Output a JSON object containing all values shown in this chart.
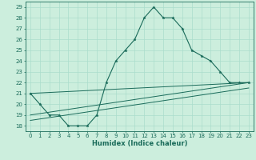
{
  "xlabel": "Humidex (Indice chaleur)",
  "bg_color": "#cceedd",
  "grid_color": "#aaddcc",
  "line_color": "#1a6b5a",
  "xlim": [
    -0.5,
    23.5
  ],
  "ylim": [
    17.5,
    29.5
  ],
  "xticks": [
    0,
    1,
    2,
    3,
    4,
    5,
    6,
    7,
    8,
    9,
    10,
    11,
    12,
    13,
    14,
    15,
    16,
    17,
    18,
    19,
    20,
    21,
    22,
    23
  ],
  "yticks": [
    18,
    19,
    20,
    21,
    22,
    23,
    24,
    25,
    26,
    27,
    28,
    29
  ],
  "main_x": [
    0,
    1,
    2,
    3,
    4,
    5,
    6,
    7,
    8,
    9,
    10,
    11,
    12,
    13,
    14,
    15,
    16,
    17,
    18,
    19,
    20,
    21,
    22,
    23
  ],
  "main_y": [
    21,
    20,
    19,
    19,
    18,
    18,
    18,
    19,
    22,
    24,
    25,
    26,
    28,
    29,
    28,
    28,
    27,
    25,
    24.5,
    24,
    23,
    22,
    22,
    22
  ],
  "line2_x": [
    0,
    23
  ],
  "line2_y": [
    21,
    22
  ],
  "line3_x": [
    0,
    23
  ],
  "line3_y": [
    19,
    22
  ],
  "line4_x": [
    0,
    23
  ],
  "line4_y": [
    18.5,
    21.5
  ],
  "xlabel_fontsize": 6,
  "tick_fontsize": 5,
  "label_color": "#1a6b5a"
}
